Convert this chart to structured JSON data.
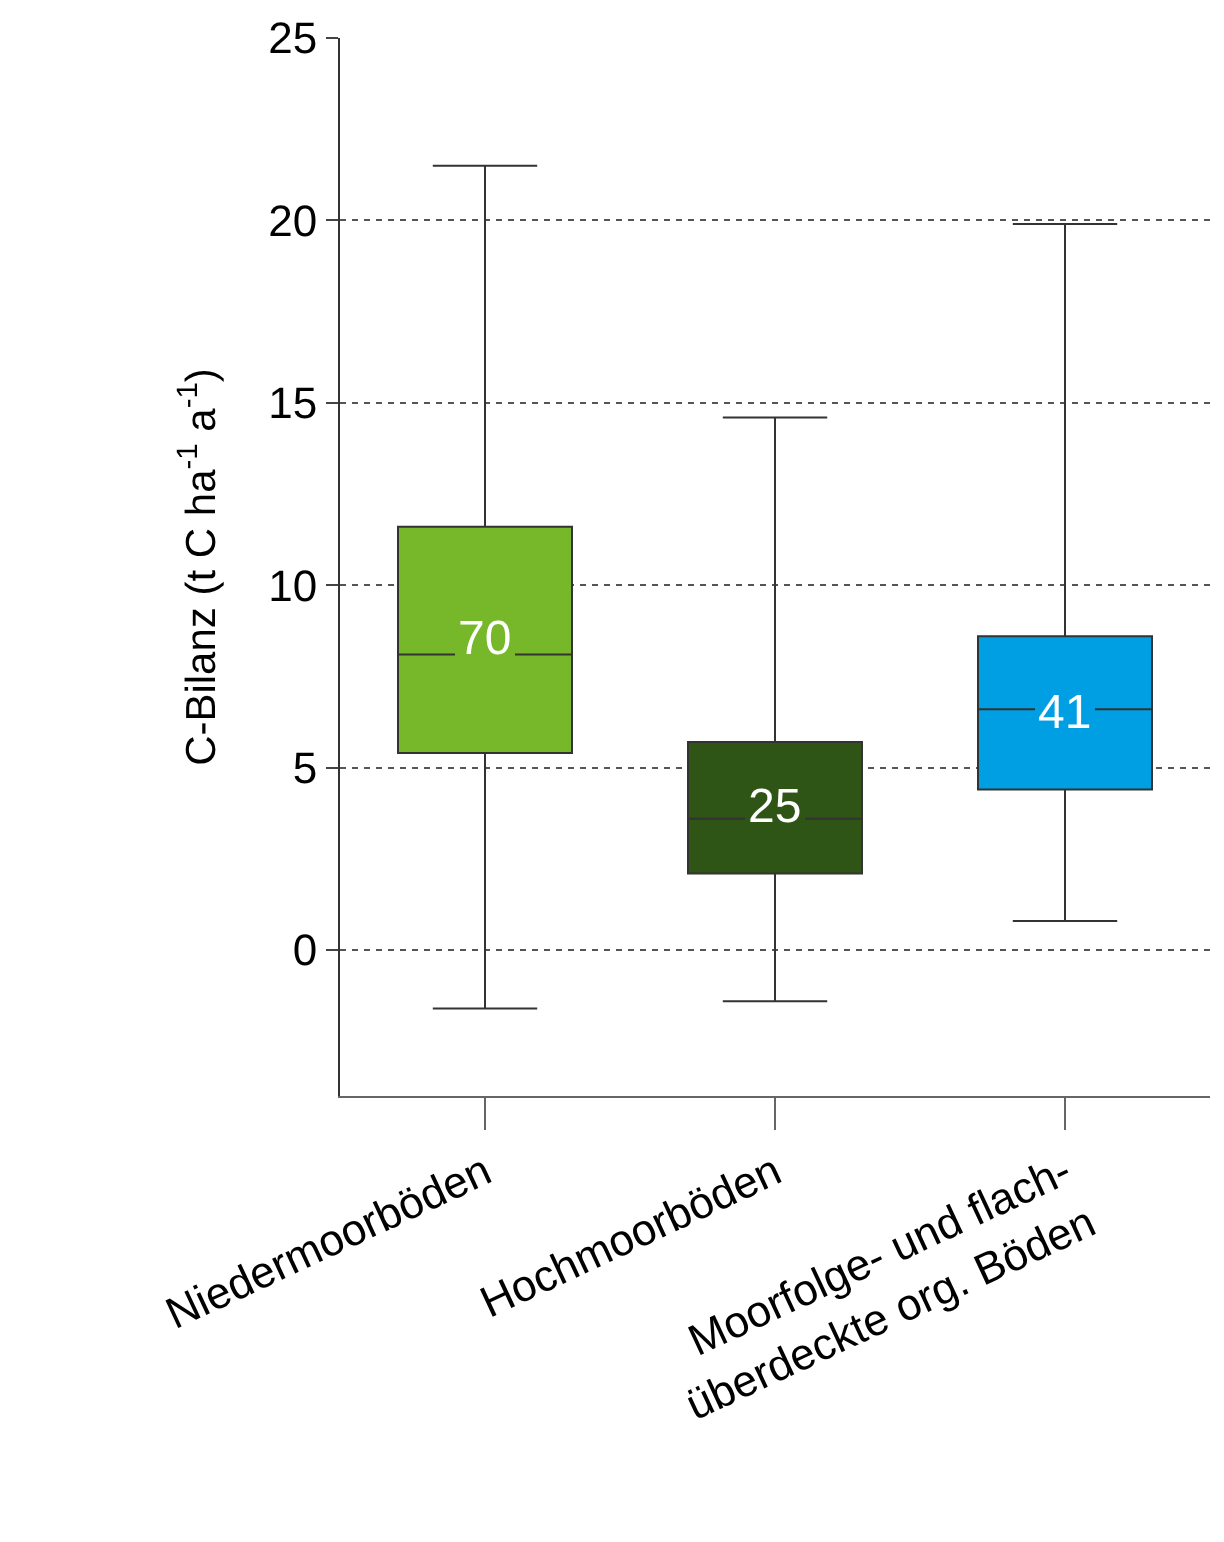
{
  "chart_data": {
    "type": "box",
    "ylabel": "C-Bilanz (t C ha$^{-1}$ a$^{-1}$)",
    "categories": [
      "Niedermoorböden",
      "Hochmoorböden",
      "Moorfolge- und flach-\nüberdeckte org. Böden"
    ],
    "colors": [
      "#76b82a",
      "#2f5516",
      "#009fe3"
    ],
    "boxes": [
      {
        "low": -1.6,
        "q1": 5.4,
        "median": 8.1,
        "q3": 11.6,
        "high": 21.5
      },
      {
        "low": -1.4,
        "q1": 2.1,
        "median": 3.6,
        "q3": 5.7,
        "high": 14.6
      },
      {
        "low": 0.8,
        "q1": 4.4,
        "median": 6.6,
        "q3": 8.6,
        "high": 19.9
      }
    ],
    "ylim": [
      -4,
      25
    ],
    "yticks": [
      0,
      5,
      10,
      15,
      20,
      25
    ],
    "grid": "y",
    "annotations": [
      "70",
      "25",
      "41"
    ]
  }
}
